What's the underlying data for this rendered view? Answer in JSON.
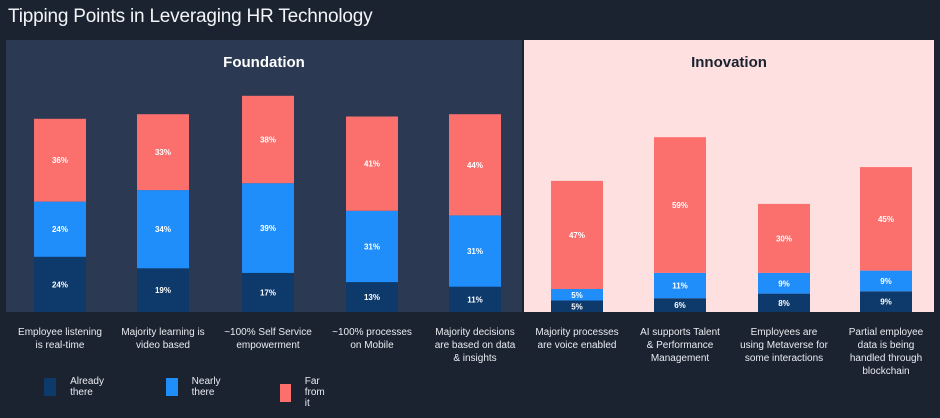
{
  "title": "Tipping Points in Leveraging HR Technology",
  "panels": {
    "foundation": "Foundation",
    "innovation": "Innovation"
  },
  "colors": {
    "already": "#0d3a6b",
    "nearly": "#1f8efa",
    "far": "#fb6f6d"
  },
  "chart_data": {
    "type": "bar",
    "stacked": true,
    "title": "Tipping Points in Leveraging HR Technology",
    "groups": [
      "Foundation",
      "Innovation"
    ],
    "categories": [
      [
        "Employee listening",
        "is real-time"
      ],
      [
        "Majority learning is",
        "video based"
      ],
      [
        "~100% Self Service",
        "empowerment"
      ],
      [
        "~100% processes",
        "on Mobile"
      ],
      [
        "Majority decisions",
        "are based on data",
        "& insights"
      ],
      [
        "Majority processes",
        "are voice enabled"
      ],
      [
        "AI supports Talent",
        "& Performance",
        "Management"
      ],
      [
        "Employees are",
        "using Metaverse for",
        "some interactions"
      ],
      [
        "Partial employee",
        "data is being",
        "handled through",
        "blockchain"
      ]
    ],
    "category_group": [
      "Foundation",
      "Foundation",
      "Foundation",
      "Foundation",
      "Foundation",
      "Innovation",
      "Innovation",
      "Innovation",
      "Innovation"
    ],
    "series": [
      {
        "name": "Already there",
        "values": [
          24,
          19,
          17,
          13,
          11,
          5,
          6,
          8,
          9
        ],
        "labels": [
          "24%",
          "19%",
          "17%",
          "13%",
          "11%",
          "5%",
          "6%",
          "8%",
          "9%"
        ]
      },
      {
        "name": "Nearly there",
        "values": [
          24,
          34,
          39,
          31,
          31,
          5,
          11,
          9,
          9
        ],
        "labels": [
          "24%",
          "34%",
          "39%",
          "31%",
          "31%",
          "5%",
          "11%",
          "9%",
          "9%"
        ]
      },
      {
        "name": "Far from it",
        "values": [
          36,
          33,
          38,
          41,
          44,
          47,
          59,
          30,
          45
        ],
        "labels": [
          "36%",
          "33%",
          "38%",
          "41%",
          "44%",
          "47%",
          "59%",
          "30%",
          "45%"
        ]
      }
    ],
    "ylim": [
      0,
      100
    ],
    "grid": false,
    "legend": "bottom-left"
  }
}
